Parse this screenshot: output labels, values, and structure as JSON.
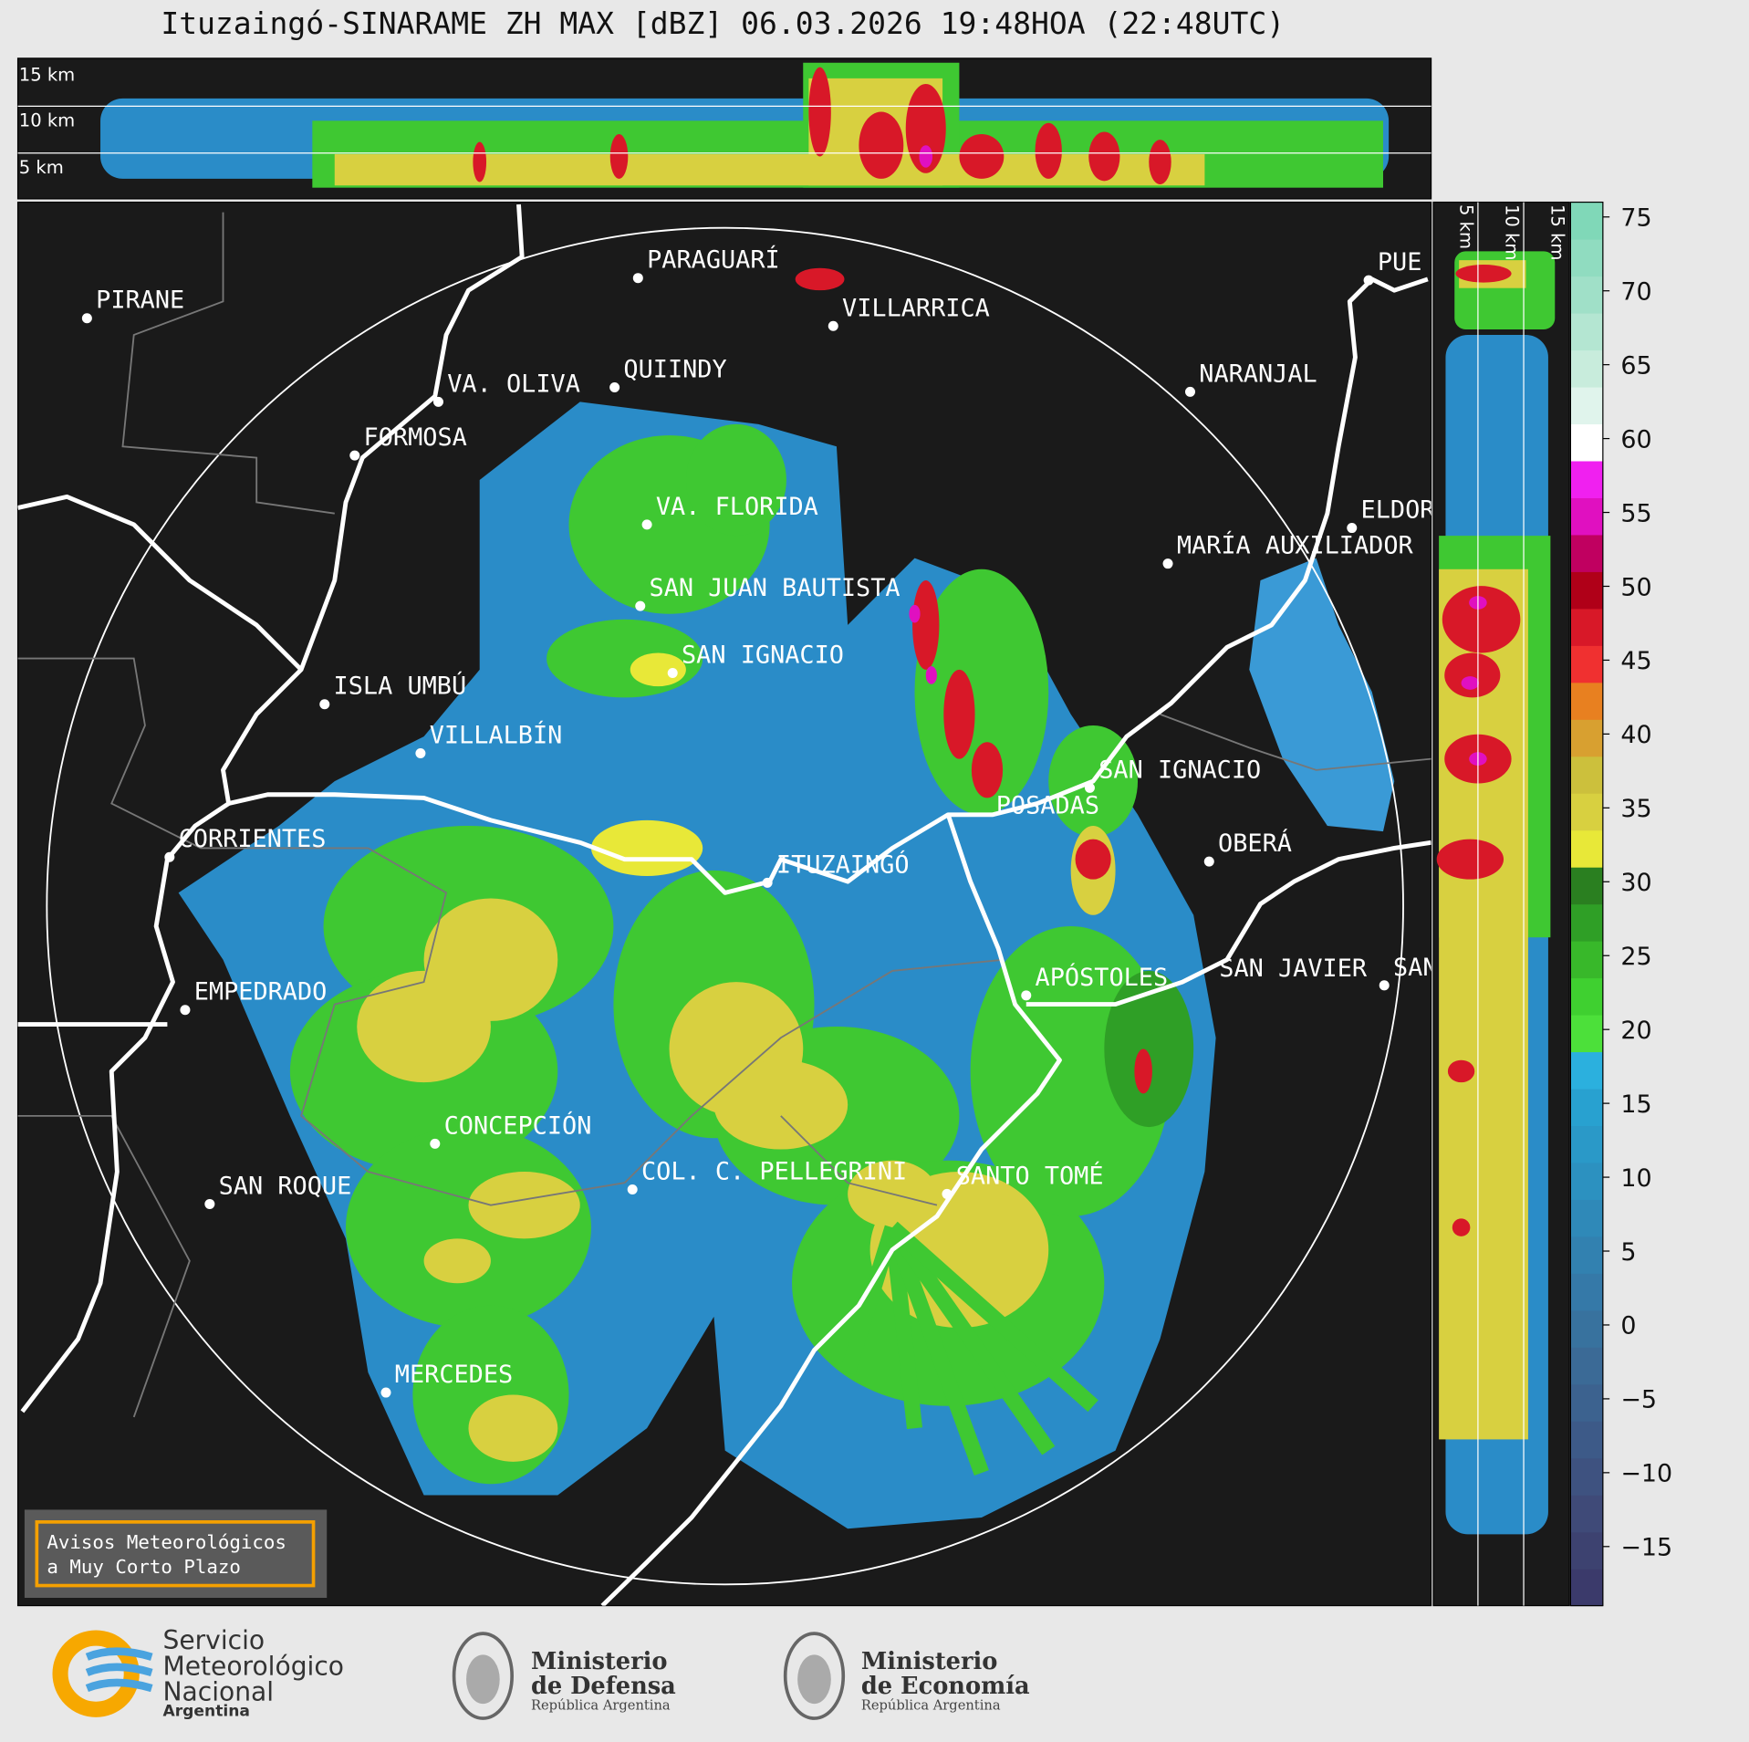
{
  "title": "Ituzaingó-SINARAME ZH MAX [dBZ] 06.03.2026 19:48HOA (22:48UTC)",
  "top_panel": {
    "labels": [
      "15 km",
      "10 km",
      "5 km"
    ]
  },
  "side_panel": {
    "labels": [
      "5 km",
      "10 km",
      "15 km"
    ]
  },
  "map": {
    "cities": [
      "PIRANE",
      "PARAGUARÍ",
      "VILLARRICA",
      "QUIINDY",
      "VA. OLIVA",
      "FORMOSA",
      "NARANJAL",
      "VA. FLORIDA",
      "ELDOR",
      "MARÍA AUXILIADOR",
      "SAN JUAN BAUTISTA",
      "SAN IGNACIO",
      "ISLA UMBÚ",
      "VILLALBÍN",
      "SAN IGNACIO",
      "POSADAS",
      "CORRIENTES",
      "ITUZAINGÓ",
      "OBERÁ",
      "EMPEDRADO",
      "APÓSTOLES",
      "SAN JAVIER",
      "SAN",
      "CONCEPCIÓN",
      "COL. C. PELLEGRINI",
      "SANTO TOMÉ",
      "SAN ROQUE",
      "MERCEDES",
      "PUE"
    ]
  },
  "colorbar": {
    "lim": [
      -19,
      76
    ],
    "ticks": [
      75,
      70,
      65,
      60,
      55,
      50,
      45,
      40,
      35,
      30,
      25,
      20,
      15,
      10,
      5,
      0,
      {
        "value": -5,
        "label": "−5"
      },
      {
        "value": -10,
        "label": "−10"
      },
      {
        "value": -15,
        "label": "−15"
      }
    ],
    "colors": [
      "#3b3a6b",
      "#3d4270",
      "#3f4a78",
      "#3e5280",
      "#3d5a88",
      "#3c628f",
      "#3b6a96",
      "#38729e",
      "#3579a8",
      "#3281b0",
      "#2f89b8",
      "#2c91c0",
      "#2a99c8",
      "#28a1d0",
      "#2bb0de",
      "#4ce03a",
      "#3fd030",
      "#38b82a",
      "#2f9f26",
      "#2a7f20",
      "#e8e838",
      "#d8d040",
      "#ccc03c",
      "#d8a030",
      "#e88020",
      "#f03030",
      "#d81828",
      "#b00018",
      "#c00060",
      "#e010c0",
      "#f020f0",
      "#ffffff",
      "#e0f4ec",
      "#c8ecdc",
      "#b4e6d2",
      "#a0e0c8",
      "#90dcc0",
      "#80d8b8"
    ]
  },
  "notice": {
    "lines": [
      "Avisos Meteorológicos",
      "a Muy Corto Plazo"
    ]
  },
  "logos": [
    {
      "lines": [
        "Servicio",
        "Meteorológico",
        "Nacional",
        "Argentina"
      ]
    },
    {
      "lines": [
        "Ministerio",
        "de Defensa",
        "República Argentina"
      ]
    },
    {
      "lines": [
        "Ministerio",
        "de Economía",
        "República Argentina"
      ]
    }
  ]
}
